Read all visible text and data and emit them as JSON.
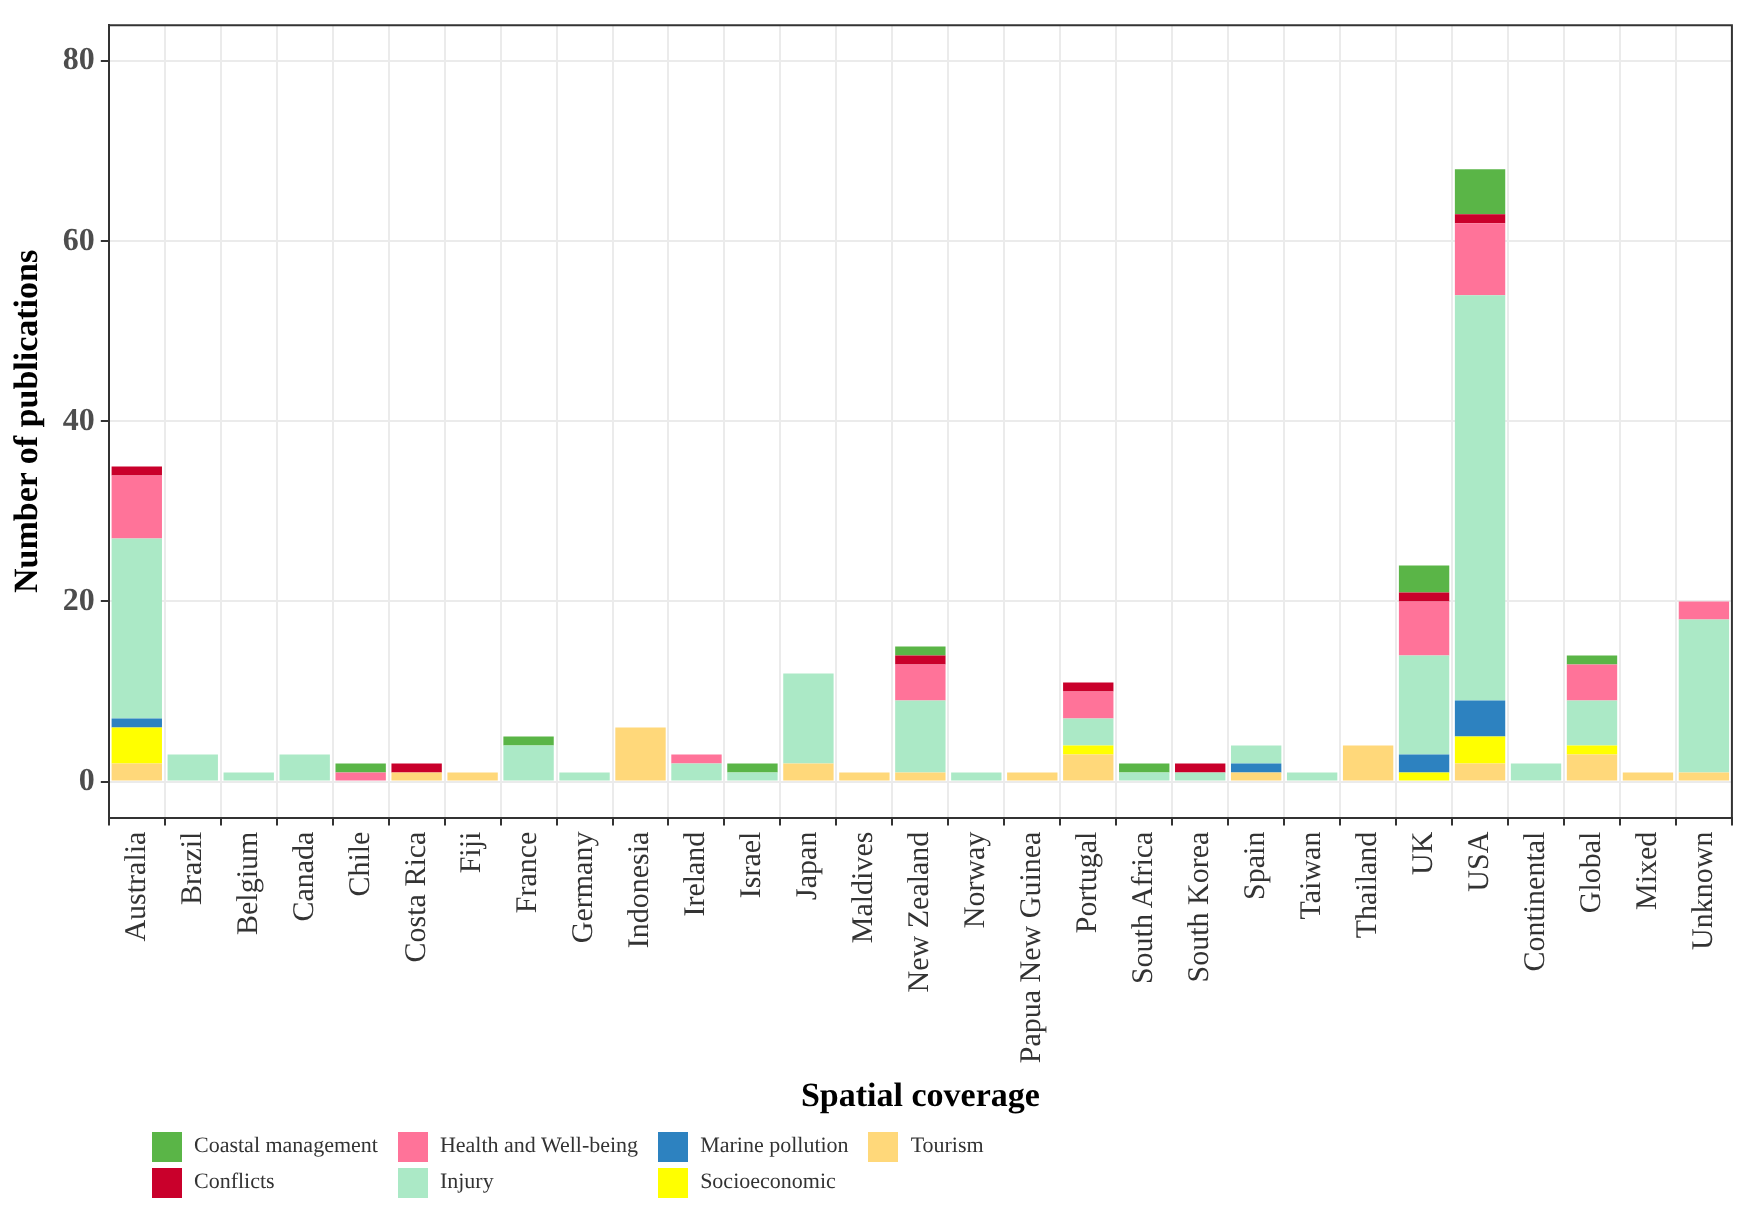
{
  "chart_data": {
    "type": "bar",
    "stacked": true,
    "xlabel": "Spatial coverage",
    "ylabel": "Number of publications",
    "categories": [
      "Australia",
      "Brazil",
      "Belgium",
      "Canada",
      "Chile",
      "Costa Rica",
      "Fiji",
      "France",
      "Germany",
      "Indonesia",
      "Ireland",
      "Israel",
      "Japan",
      "Maldives",
      "New Zealand",
      "Norway",
      "Papua New Guinea",
      "Portugal",
      "South Africa",
      "South Korea",
      "Spain",
      "Taiwan",
      "Thailand",
      "UK",
      "USA",
      "Continental",
      "Global",
      "Mixed",
      "Unknown"
    ],
    "series": [
      {
        "name": "Tourism",
        "color": "#ffd87a",
        "values": [
          2,
          null,
          null,
          null,
          null,
          1,
          1,
          null,
          null,
          6,
          null,
          null,
          2,
          1,
          1,
          null,
          1,
          3,
          null,
          null,
          1,
          null,
          4,
          null,
          2,
          null,
          3,
          1,
          1
        ]
      },
      {
        "name": "Socioeconomic",
        "color": "#ffff00",
        "values": [
          4,
          null,
          null,
          null,
          null,
          null,
          null,
          null,
          null,
          null,
          null,
          null,
          null,
          null,
          null,
          null,
          null,
          1,
          null,
          null,
          null,
          null,
          null,
          1,
          3,
          null,
          1,
          null,
          null
        ]
      },
      {
        "name": "Marine pollution",
        "color": "#2d82c0",
        "values": [
          1,
          null,
          null,
          null,
          null,
          null,
          null,
          null,
          null,
          null,
          null,
          null,
          null,
          null,
          null,
          null,
          null,
          null,
          null,
          null,
          1,
          null,
          null,
          2,
          4,
          null,
          null,
          null,
          null
        ]
      },
      {
        "name": "Injury",
        "color": "#abe9c6",
        "values": [
          20,
          3,
          1,
          3,
          null,
          null,
          null,
          4,
          1,
          null,
          2,
          1,
          10,
          null,
          8,
          1,
          null,
          3,
          1,
          1,
          2,
          1,
          null,
          11,
          45,
          2,
          5,
          null,
          17
        ]
      },
      {
        "name": "Health and Well-being",
        "color": "#ff7399",
        "values": [
          7,
          null,
          null,
          null,
          1,
          null,
          null,
          null,
          null,
          null,
          1,
          null,
          null,
          null,
          4,
          null,
          null,
          3,
          null,
          null,
          null,
          null,
          null,
          6,
          8,
          null,
          4,
          null,
          2
        ]
      },
      {
        "name": "Conflicts",
        "color": "#c9002b",
        "values": [
          1,
          null,
          null,
          null,
          null,
          1,
          null,
          null,
          null,
          null,
          null,
          null,
          null,
          null,
          1,
          null,
          null,
          1,
          null,
          1,
          null,
          null,
          null,
          1,
          1,
          null,
          null,
          null,
          null
        ]
      },
      {
        "name": "Coastal management",
        "color": "#5ab547",
        "values": [
          null,
          null,
          null,
          null,
          1,
          null,
          null,
          1,
          null,
          null,
          null,
          1,
          null,
          null,
          1,
          null,
          null,
          null,
          1,
          null,
          null,
          null,
          null,
          3,
          5,
          null,
          1,
          null,
          null
        ]
      }
    ],
    "ylim": [
      -4,
      84
    ],
    "yticks": [
      0,
      20,
      40,
      60,
      80
    ],
    "grid": true,
    "legend": "bottom"
  }
}
